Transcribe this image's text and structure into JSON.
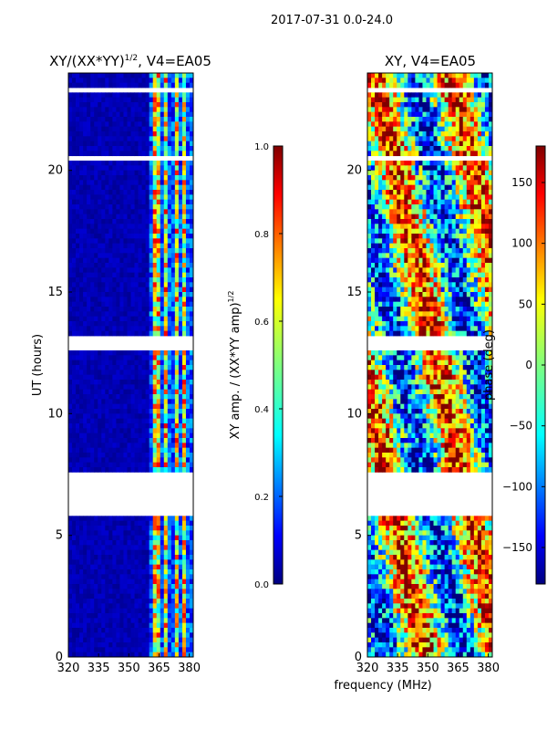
{
  "figure": {
    "suptitle": "2017-07-31 0.0-24.0",
    "xlabel": "frequency (MHz)"
  },
  "chart_data": [
    {
      "type": "heatmap",
      "title": "XY/(XX*YY)",
      "title_exp": "1/2",
      "title_suffix": ", V4=EA05",
      "ylabel": "UT (hours)",
      "xlim": [
        320,
        382
      ],
      "ylim": [
        0,
        24
      ],
      "xticks": [
        320,
        335,
        350,
        365,
        380
      ],
      "yticks": [
        0,
        5,
        10,
        15,
        20
      ],
      "colorbar": {
        "label": "XY amp. / (XX*YY amp)",
        "label_exp": "1/2",
        "range": [
          0.0,
          1.0
        ],
        "ticks": [
          "0.0",
          "0.2",
          "0.4",
          "0.6",
          "0.8",
          "1.0"
        ]
      },
      "flagged_ut_ranges": [
        [
          5.8,
          7.6
        ],
        [
          12.7,
          13.2
        ],
        [
          20.5,
          20.6
        ],
        [
          23.3,
          23.4
        ]
      ],
      "bright_channels_mhz": [
        [
          362,
          365
        ],
        [
          367,
          369
        ],
        [
          372,
          374
        ],
        [
          376,
          378
        ]
      ]
    },
    {
      "type": "heatmap",
      "title": "XY, V4=EA05",
      "ylabel": "",
      "xlim": [
        320,
        382
      ],
      "ylim": [
        0,
        24
      ],
      "xticks": [
        320,
        335,
        350,
        365,
        380
      ],
      "yticks": [
        0,
        5,
        10,
        15,
        20
      ],
      "colorbar": {
        "label": "phase (deg)",
        "range": [
          -180,
          180
        ],
        "ticks": [
          "-150",
          "-100",
          "-50",
          "0",
          "50",
          "100",
          "150"
        ]
      },
      "flagged_ut_ranges": [
        [
          5.8,
          7.6
        ],
        [
          12.7,
          13.2
        ],
        [
          20.5,
          20.6
        ],
        [
          23.3,
          23.4
        ]
      ]
    }
  ],
  "colors": {
    "jet": [
      "#00007f",
      "#0000ff",
      "#007fff",
      "#00ffff",
      "#7fff7f",
      "#ffff00",
      "#ff7f00",
      "#ff0000",
      "#7f0000"
    ]
  }
}
